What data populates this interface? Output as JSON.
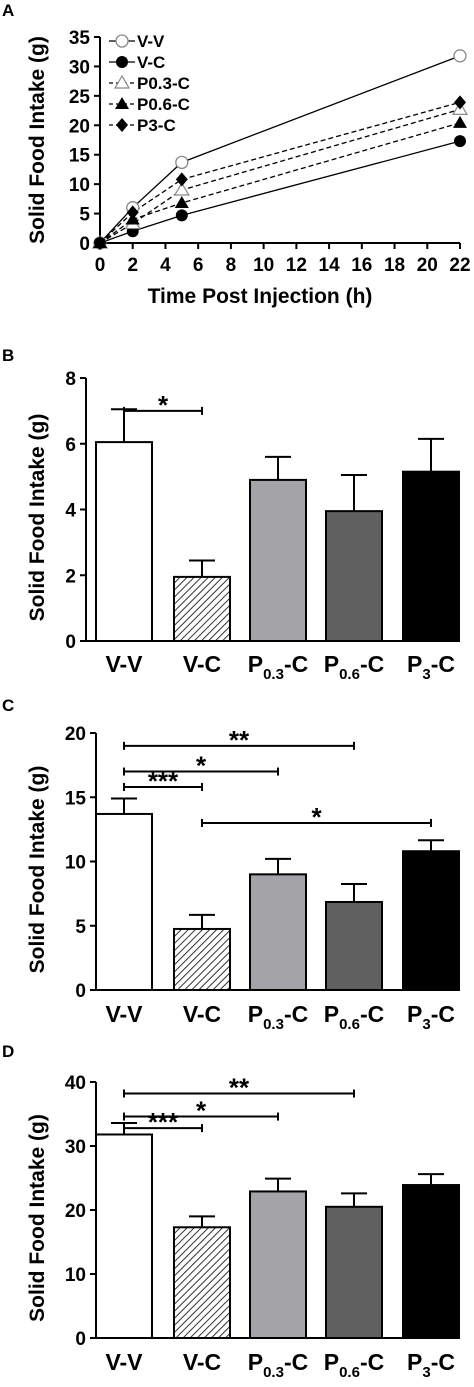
{
  "chart_data": [
    {
      "panel": "A",
      "type": "line",
      "xlabel": "Time Post Injection (h)",
      "ylabel": "Solid Food Intake (g)",
      "xlim": [
        0,
        22
      ],
      "ylim": [
        0,
        35
      ],
      "x_ticks": [
        "0",
        "2",
        "4",
        "6",
        "8",
        "10",
        "12",
        "14",
        "16",
        "18",
        "20",
        "22"
      ],
      "y_ticks": [
        "0",
        "5",
        "10",
        "15",
        "20",
        "25",
        "30",
        "35"
      ],
      "x": [
        0,
        2,
        5,
        22
      ],
      "legend_position": "top-left",
      "series": [
        {
          "name": "V-V",
          "values": [
            0,
            6,
            13.7,
            31.8
          ],
          "marker": "open-circle",
          "line": "solid"
        },
        {
          "name": "V-C",
          "values": [
            0,
            2,
            4.7,
            17.3
          ],
          "marker": "filled-circle",
          "line": "solid"
        },
        {
          "name": "P0.3-C",
          "values": [
            0,
            3.3,
            9,
            22.7
          ],
          "marker": "open-triangle",
          "line": "dashed"
        },
        {
          "name": "P0.6-C",
          "values": [
            0,
            4,
            6.8,
            20.4
          ],
          "marker": "filled-triangle",
          "line": "dashed"
        },
        {
          "name": "P3-C",
          "values": [
            0,
            5.2,
            10.8,
            23.9
          ],
          "marker": "filled-diamond",
          "line": "dashed"
        }
      ]
    },
    {
      "panel": "B",
      "type": "bar",
      "ylabel": "Solid Food Intake (g)",
      "ylim": [
        0,
        8
      ],
      "y_ticks": [
        "0",
        "2",
        "4",
        "6",
        "8"
      ],
      "categories": [
        {
          "main": "V-V",
          "sub": "",
          "tail": ""
        },
        {
          "main": "V-C",
          "sub": "",
          "tail": ""
        },
        {
          "main": "P",
          "sub": "0.3",
          "tail": "-C"
        },
        {
          "main": "P",
          "sub": "0.6",
          "tail": "-C"
        },
        {
          "main": "P",
          "sub": "3",
          "tail": "-C"
        }
      ],
      "values": [
        6.05,
        1.95,
        4.9,
        3.95,
        5.15
      ],
      "errors": [
        1.0,
        0.5,
        0.7,
        1.1,
        1.0
      ],
      "fills": [
        "#ffffff",
        "hatch",
        "#a3a3a8",
        "#606060",
        "#000000"
      ],
      "significance": [
        {
          "from": 0,
          "to": 1,
          "label": "*",
          "y": 7.0
        }
      ]
    },
    {
      "panel": "C",
      "type": "bar",
      "ylabel": "Solid Food Intake (g)",
      "ylim": [
        0,
        20
      ],
      "y_ticks": [
        "0",
        "5",
        "10",
        "15",
        "20"
      ],
      "categories": [
        {
          "main": "V-V",
          "sub": "",
          "tail": ""
        },
        {
          "main": "V-C",
          "sub": "",
          "tail": ""
        },
        {
          "main": "P",
          "sub": "0.3",
          "tail": "-C"
        },
        {
          "main": "P",
          "sub": "0.6",
          "tail": "-C"
        },
        {
          "main": "P",
          "sub": "3",
          "tail": "-C"
        }
      ],
      "values": [
        13.7,
        4.75,
        9.0,
        6.85,
        10.8
      ],
      "errors": [
        1.2,
        1.1,
        1.2,
        1.4,
        0.85
      ],
      "fills": [
        "#ffffff",
        "hatch",
        "#a3a3a8",
        "#606060",
        "#000000"
      ],
      "significance": [
        {
          "from": 0,
          "to": 3,
          "label": "**",
          "y": 19.0
        },
        {
          "from": 0,
          "to": 2,
          "label": "*",
          "y": 17.0
        },
        {
          "from": 0,
          "to": 1,
          "label": "***",
          "y": 15.8
        },
        {
          "from": 1,
          "to": 4,
          "label": "*",
          "y": 13.0
        }
      ]
    },
    {
      "panel": "D",
      "type": "bar",
      "ylabel": "Solid Food Intake (g)",
      "ylim": [
        0,
        40
      ],
      "y_ticks": [
        "0",
        "10",
        "20",
        "30",
        "40"
      ],
      "categories": [
        {
          "main": "V-V",
          "sub": "",
          "tail": ""
        },
        {
          "main": "V-C",
          "sub": "",
          "tail": ""
        },
        {
          "main": "P",
          "sub": "0.3",
          "tail": "-C"
        },
        {
          "main": "P",
          "sub": "0.6",
          "tail": "-C"
        },
        {
          "main": "P",
          "sub": "3",
          "tail": "-C"
        }
      ],
      "values": [
        31.8,
        17.3,
        22.9,
        20.5,
        23.9
      ],
      "errors": [
        1.8,
        1.7,
        2.0,
        2.1,
        1.7
      ],
      "fills": [
        "#ffffff",
        "hatch",
        "#a3a3a8",
        "#606060",
        "#000000"
      ],
      "significance": [
        {
          "from": 0,
          "to": 3,
          "label": "**",
          "y": 38.2
        },
        {
          "from": 0,
          "to": 2,
          "label": "*",
          "y": 34.6
        },
        {
          "from": 0,
          "to": 1,
          "label": "***",
          "y": 32.8
        }
      ]
    }
  ]
}
